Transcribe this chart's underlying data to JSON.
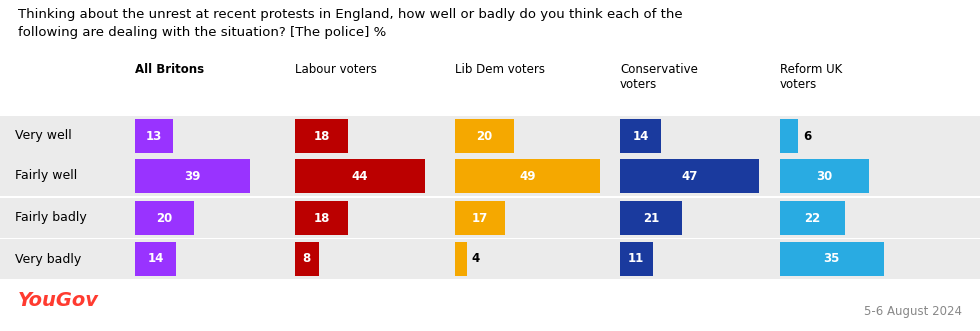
{
  "title": "Thinking about the unrest at recent protests in England, how well or badly do you think each of the\nfollowing are dealing with the situation? [The police] %",
  "columns": [
    "All Britons",
    "Labour voters",
    "Lib Dem voters",
    "Conservative\nvoters",
    "Reform UK\nvoters"
  ],
  "columns_bold": [
    true,
    false,
    false,
    false,
    false
  ],
  "rows": [
    "Very well",
    "Fairly well",
    "Fairly badly",
    "Very badly"
  ],
  "values": [
    [
      13,
      18,
      20,
      14,
      6
    ],
    [
      39,
      44,
      49,
      47,
      30
    ],
    [
      20,
      18,
      17,
      21,
      22
    ],
    [
      14,
      8,
      4,
      11,
      35
    ]
  ],
  "colors": [
    [
      "#9933FF",
      "#BB0000",
      "#F5A800",
      "#1A3A9E",
      "#29ABE2"
    ],
    [
      "#9933FF",
      "#BB0000",
      "#F5A800",
      "#1A3A9E",
      "#29ABE2"
    ],
    [
      "#9933FF",
      "#BB0000",
      "#F5A800",
      "#1A3A9E",
      "#29ABE2"
    ],
    [
      "#9933FF",
      "#BB0000",
      "#F5A800",
      "#1A3A9E",
      "#29ABE2"
    ]
  ],
  "background_color": "#ffffff",
  "row_bg_color": "#ebebeb",
  "yougov_color": "#FF3B30",
  "date_text": "5-6 August 2024",
  "max_bar_val": 49
}
